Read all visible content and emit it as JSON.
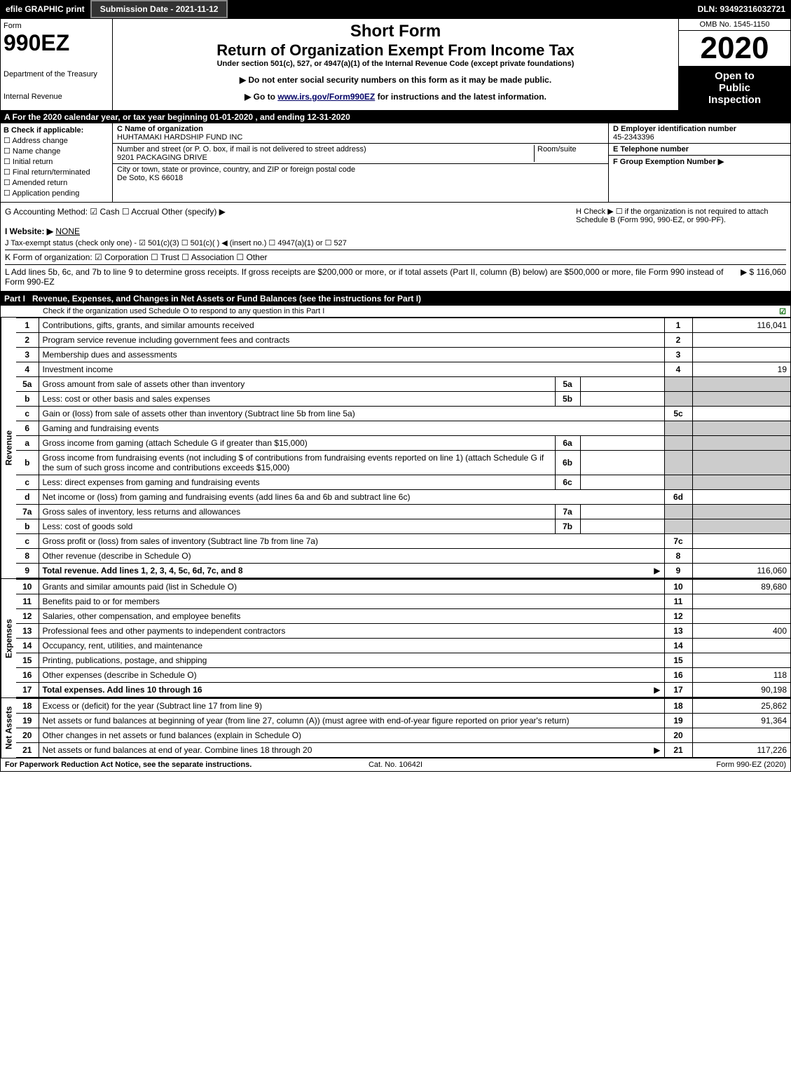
{
  "topbar": {
    "efile": "efile GRAPHIC print",
    "subdate": "Submission Date - 2021-11-12",
    "dln": "DLN: 93492316032721"
  },
  "header": {
    "form_label": "Form",
    "form_number": "990EZ",
    "dept1": "Department of the Treasury",
    "dept2": "Internal Revenue",
    "title1": "Short Form",
    "title2": "Return of Organization Exempt From Income Tax",
    "subtitle": "Under section 501(c), 527, or 4947(a)(1) of the Internal Revenue Code (except private foundations)",
    "note1": "▶ Do not enter social security numbers on this form as it may be made public.",
    "note2_pre": "▶ Go to ",
    "note2_link": "www.irs.gov/Form990EZ",
    "note2_post": " for instructions and the latest information.",
    "omb": "OMB No. 1545-1150",
    "year": "2020",
    "open1": "Open to",
    "open2": "Public",
    "open3": "Inspection"
  },
  "row_a": "A For the 2020 calendar year, or tax year beginning 01-01-2020 , and ending 12-31-2020",
  "col_b": {
    "hdr": "B  Check if applicable:",
    "c1": "Address change",
    "c2": "Name change",
    "c3": "Initial return",
    "c4": "Final return/terminated",
    "c5": "Amended return",
    "c6": "Application pending"
  },
  "col_c": {
    "name_lbl": "C Name of organization",
    "name_val": "HUHTAMAKI HARDSHIP FUND INC",
    "addr_lbl": "Number and street (or P. O. box, if mail is not delivered to street address)",
    "addr_val": "9201 PACKAGING DRIVE",
    "room_lbl": "Room/suite",
    "city_lbl": "City or town, state or province, country, and ZIP or foreign postal code",
    "city_val": "De Soto, KS  66018"
  },
  "col_d": {
    "ein_lbl": "D Employer identification number",
    "ein_val": "45-2343396",
    "tel_lbl": "E Telephone number",
    "grp_lbl": "F Group Exemption Number   ▶"
  },
  "mid": {
    "g": "G Accounting Method:   ☑ Cash   ☐ Accrual   Other (specify) ▶",
    "h": "H  Check ▶  ☐  if the organization is not required to attach Schedule B (Form 990, 990-EZ, or 990-PF).",
    "i_lbl": "I Website: ▶",
    "i_val": "NONE",
    "j": "J Tax-exempt status (check only one) -  ☑ 501(c)(3)  ☐  501(c)(  ) ◀ (insert no.)  ☐  4947(a)(1) or  ☐  527",
    "k": "K Form of organization:   ☑ Corporation   ☐ Trust   ☐ Association   ☐ Other",
    "l": "L Add lines 5b, 6c, and 7b to line 9 to determine gross receipts. If gross receipts are $200,000 or more, or if total assets (Part II, column (B) below) are $500,000 or more, file Form 990 instead of Form 990-EZ",
    "l_val": "▶ $ 116,060"
  },
  "part1": {
    "num": "Part I",
    "title": "Revenue, Expenses, and Changes in Net Assets or Fund Balances (see the instructions for Part I)",
    "sub": "Check if the organization used Schedule O to respond to any question in this Part I"
  },
  "sections": {
    "revenue": "Revenue",
    "expenses": "Expenses",
    "netassets": "Net Assets"
  },
  "rows": [
    {
      "n": "1",
      "d": "Contributions, gifts, grants, and similar amounts received",
      "box": "1",
      "val": "116,041"
    },
    {
      "n": "2",
      "d": "Program service revenue including government fees and contracts",
      "box": "2",
      "val": ""
    },
    {
      "n": "3",
      "d": "Membership dues and assessments",
      "box": "3",
      "val": ""
    },
    {
      "n": "4",
      "d": "Investment income",
      "box": "4",
      "val": "19"
    },
    {
      "n": "5a",
      "d": "Gross amount from sale of assets other than inventory",
      "sub": "5a",
      "shade": true
    },
    {
      "n": "b",
      "d": "Less: cost or other basis and sales expenses",
      "sub": "5b",
      "shade": true
    },
    {
      "n": "c",
      "d": "Gain or (loss) from sale of assets other than inventory (Subtract line 5b from line 5a)",
      "box": "5c",
      "val": ""
    },
    {
      "n": "6",
      "d": "Gaming and fundraising events",
      "shade": true,
      "nobox": true
    },
    {
      "n": "a",
      "d": "Gross income from gaming (attach Schedule G if greater than $15,000)",
      "sub": "6a",
      "shade": true
    },
    {
      "n": "b",
      "d": "Gross income from fundraising events (not including $                    of contributions from fundraising events reported on line 1) (attach Schedule G if the sum of such gross income and contributions exceeds $15,000)",
      "sub": "6b",
      "shade": true
    },
    {
      "n": "c",
      "d": "Less: direct expenses from gaming and fundraising events",
      "sub": "6c",
      "shade": true
    },
    {
      "n": "d",
      "d": "Net income or (loss) from gaming and fundraising events (add lines 6a and 6b and subtract line 6c)",
      "box": "6d",
      "val": ""
    },
    {
      "n": "7a",
      "d": "Gross sales of inventory, less returns and allowances",
      "sub": "7a",
      "shade": true
    },
    {
      "n": "b",
      "d": "Less: cost of goods sold",
      "sub": "7b",
      "shade": true
    },
    {
      "n": "c",
      "d": "Gross profit or (loss) from sales of inventory (Subtract line 7b from line 7a)",
      "box": "7c",
      "val": ""
    },
    {
      "n": "8",
      "d": "Other revenue (describe in Schedule O)",
      "box": "8",
      "val": ""
    },
    {
      "n": "9",
      "d": "Total revenue. Add lines 1, 2, 3, 4, 5c, 6d, 7c, and 8",
      "box": "9",
      "val": "116,060",
      "bold": true,
      "arrow": true
    }
  ],
  "exp_rows": [
    {
      "n": "10",
      "d": "Grants and similar amounts paid (list in Schedule O)",
      "box": "10",
      "val": "89,680"
    },
    {
      "n": "11",
      "d": "Benefits paid to or for members",
      "box": "11",
      "val": ""
    },
    {
      "n": "12",
      "d": "Salaries, other compensation, and employee benefits",
      "box": "12",
      "val": ""
    },
    {
      "n": "13",
      "d": "Professional fees and other payments to independent contractors",
      "box": "13",
      "val": "400"
    },
    {
      "n": "14",
      "d": "Occupancy, rent, utilities, and maintenance",
      "box": "14",
      "val": ""
    },
    {
      "n": "15",
      "d": "Printing, publications, postage, and shipping",
      "box": "15",
      "val": ""
    },
    {
      "n": "16",
      "d": "Other expenses (describe in Schedule O)",
      "box": "16",
      "val": "118"
    },
    {
      "n": "17",
      "d": "Total expenses. Add lines 10 through 16",
      "box": "17",
      "val": "90,198",
      "bold": true,
      "arrow": true
    }
  ],
  "na_rows": [
    {
      "n": "18",
      "d": "Excess or (deficit) for the year (Subtract line 17 from line 9)",
      "box": "18",
      "val": "25,862"
    },
    {
      "n": "19",
      "d": "Net assets or fund balances at beginning of year (from line 27, column (A)) (must agree with end-of-year figure reported on prior year's return)",
      "box": "19",
      "val": "91,364"
    },
    {
      "n": "20",
      "d": "Other changes in net assets or fund balances (explain in Schedule O)",
      "box": "20",
      "val": ""
    },
    {
      "n": "21",
      "d": "Net assets or fund balances at end of year. Combine lines 18 through 20",
      "box": "21",
      "val": "117,226",
      "arrow": true
    }
  ],
  "footer": {
    "left": "For Paperwork Reduction Act Notice, see the separate instructions.",
    "mid": "Cat. No. 10642I",
    "right": "Form 990-EZ (2020)"
  }
}
